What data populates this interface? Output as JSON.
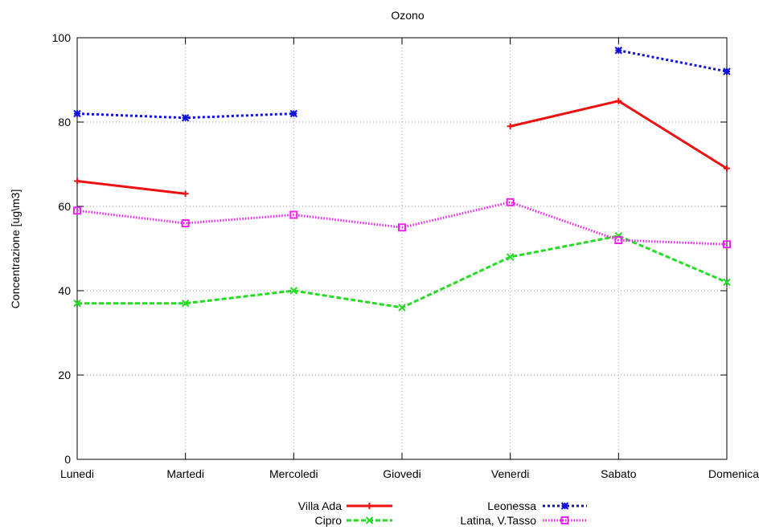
{
  "chart_data": {
    "type": "line",
    "title": "Ozono",
    "xlabel": "",
    "ylabel": "Concentrazione [ug\\m3]",
    "categories": [
      "Lunedi",
      "Martedi",
      "Mercoledi",
      "Giovedi",
      "Venerdi",
      "Sabato",
      "Domenica"
    ],
    "ylim": [
      0,
      100
    ],
    "yticks": [
      0,
      20,
      40,
      60,
      80,
      100
    ],
    "grid": true,
    "legend_position": "bottom-center",
    "series": [
      {
        "name": "Villa Ada",
        "color": "#ee1111",
        "dash": "solid",
        "marker": "plus",
        "values": [
          66,
          63,
          null,
          null,
          79,
          85,
          69
        ]
      },
      {
        "name": "Cipro",
        "color": "#22dd22",
        "dash": "dashed",
        "marker": "cross",
        "values": [
          37,
          37,
          40,
          36,
          48,
          53,
          42
        ]
      },
      {
        "name": "Leonessa",
        "color": "#1111dd",
        "dash": "dotted",
        "marker": "star",
        "values": [
          82,
          81,
          82,
          null,
          null,
          97,
          92
        ]
      },
      {
        "name": "Latina, V.Tasso",
        "color": "#ee22ee",
        "dash": "fine-dotted",
        "marker": "square",
        "values": [
          59,
          56,
          58,
          55,
          61,
          52,
          51
        ]
      }
    ]
  }
}
